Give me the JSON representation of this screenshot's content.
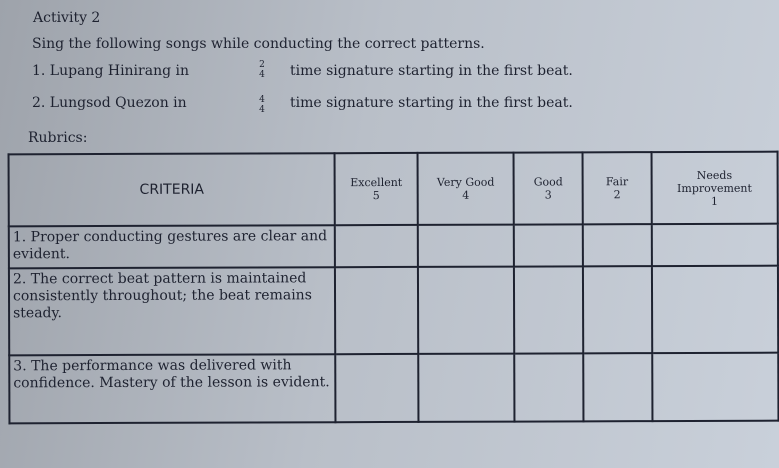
{
  "title": "Activity 2",
  "instruction": "Sing the following songs while conducting the correct patterns.",
  "items": [
    {
      "prefix": "1. Lupang Hinirang in",
      "num": "2",
      "den": "4",
      "suffix": "time signature starting in the first beat."
    },
    {
      "prefix": "2. Lungsod Quezon in",
      "num": "4",
      "den": "4",
      "suffix": "time signature starting in the first beat."
    }
  ],
  "rubrics_label": "Rubrics:",
  "table": {
    "headers": [
      {
        "label": "CRITERIA"
      },
      {
        "label": "Excellent",
        "score": "5"
      },
      {
        "label": "Very Good",
        "score": "4"
      },
      {
        "label": "Good",
        "score": "3"
      },
      {
        "label": "Fair",
        "score": "2"
      },
      {
        "label": "Needs Improvement",
        "score": "1"
      }
    ],
    "rows": [
      {
        "criteria": "1. Proper conducting gestures are clear and evident."
      },
      {
        "criteria": "2. The correct beat pattern is maintained consistently throughout; the beat remains steady."
      },
      {
        "criteria": "3. The performance was delivered with confidence. Mastery of the lesson is evident."
      }
    ]
  }
}
